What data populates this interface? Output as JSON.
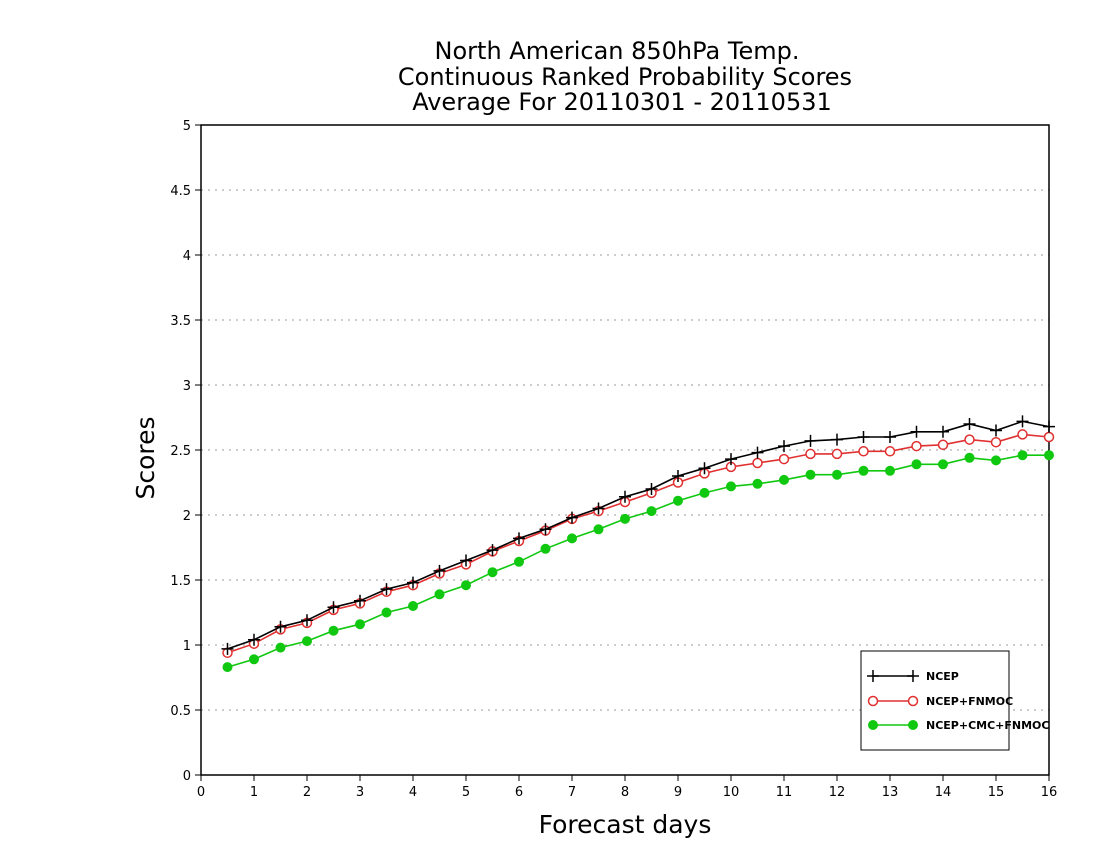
{
  "chart_data": {
    "type": "line",
    "title_lines": [
      "North American 850hPa Temp.",
      "Continuous Ranked Probability Scores",
      "Average For 20110301 - 20110531"
    ],
    "xlabel": "Forecast days",
    "ylabel": "Scores",
    "xlim": [
      0,
      16
    ],
    "ylim": [
      0,
      5
    ],
    "x_ticks": [
      0,
      1,
      2,
      3,
      4,
      5,
      6,
      7,
      8,
      9,
      10,
      11,
      12,
      13,
      14,
      15,
      16
    ],
    "y_ticks": [
      0,
      0.5,
      1,
      1.5,
      2,
      2.5,
      3,
      3.5,
      4,
      4.5,
      5
    ],
    "grid": true,
    "legend_position": "bottom-right",
    "x": [
      0.5,
      1,
      1.5,
      2,
      2.5,
      3,
      3.5,
      4,
      4.5,
      5,
      5.5,
      6,
      6.5,
      7,
      7.5,
      8,
      8.5,
      9,
      9.5,
      10,
      10.5,
      11,
      11.5,
      12,
      12.5,
      13,
      13.5,
      14,
      14.5,
      15,
      15.5,
      16
    ],
    "series": [
      {
        "name": "NCEP",
        "color": "#000000",
        "marker": "plus",
        "values": [
          0.97,
          1.04,
          1.14,
          1.19,
          1.29,
          1.34,
          1.43,
          1.48,
          1.57,
          1.65,
          1.73,
          1.82,
          1.89,
          1.98,
          2.05,
          2.14,
          2.2,
          2.3,
          2.36,
          2.43,
          2.48,
          2.53,
          2.57,
          2.58,
          2.6,
          2.6,
          2.64,
          2.64,
          2.7,
          2.65,
          2.72,
          2.68
        ]
      },
      {
        "name": "NCEP+FNMOC",
        "color": "#e03030",
        "marker": "open-circle",
        "values": [
          0.94,
          1.01,
          1.12,
          1.17,
          1.27,
          1.32,
          1.41,
          1.46,
          1.55,
          1.62,
          1.72,
          1.8,
          1.88,
          1.97,
          2.03,
          2.1,
          2.17,
          2.25,
          2.32,
          2.37,
          2.4,
          2.43,
          2.47,
          2.47,
          2.49,
          2.49,
          2.53,
          2.54,
          2.58,
          2.56,
          2.62,
          2.6
        ]
      },
      {
        "name": "NCEP+CMC+FNMOC",
        "color": "#10c810",
        "marker": "filled-circle",
        "values": [
          0.83,
          0.89,
          0.98,
          1.03,
          1.11,
          1.16,
          1.25,
          1.3,
          1.39,
          1.46,
          1.56,
          1.64,
          1.74,
          1.82,
          1.89,
          1.97,
          2.03,
          2.11,
          2.17,
          2.22,
          2.24,
          2.27,
          2.31,
          2.31,
          2.34,
          2.34,
          2.39,
          2.39,
          2.44,
          2.42,
          2.46,
          2.46
        ]
      }
    ]
  }
}
